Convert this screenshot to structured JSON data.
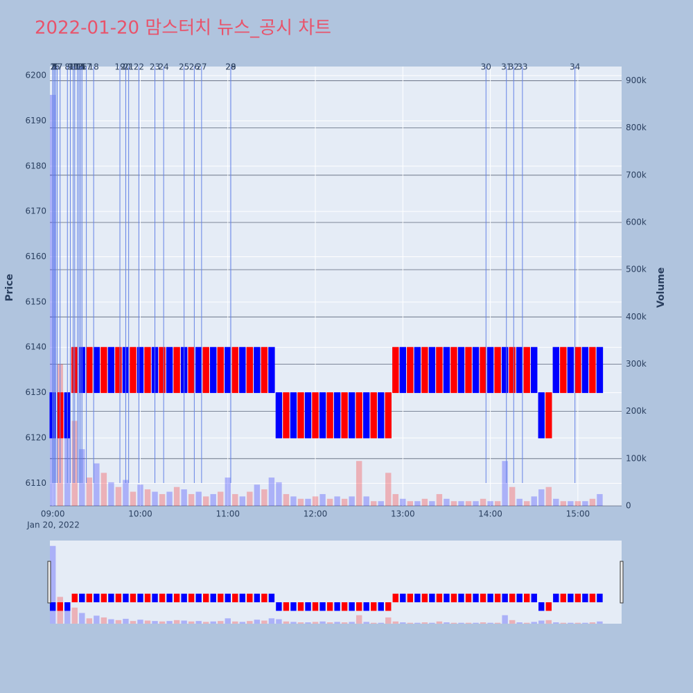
{
  "chart_data": {
    "type": "candlestick",
    "title": "2022-01-20 맘스터치 뉴스_공시 차트",
    "y_label": "Price",
    "y2_label": "Volume",
    "x": [
      "09:00",
      "09:05",
      "09:10",
      "09:15",
      "09:20",
      "09:25",
      "09:30",
      "09:35",
      "09:40",
      "09:45",
      "09:50",
      "09:55",
      "10:00",
      "10:05",
      "10:10",
      "10:15",
      "10:20",
      "10:25",
      "10:30",
      "10:35",
      "10:40",
      "10:45",
      "10:50",
      "10:55",
      "11:00",
      "11:05",
      "11:10",
      "11:15",
      "11:20",
      "11:25",
      "11:30",
      "11:35",
      "11:40",
      "11:45",
      "11:50",
      "11:55",
      "12:00",
      "12:05",
      "12:10",
      "12:15",
      "12:20",
      "12:25",
      "12:30",
      "12:35",
      "12:40",
      "12:45",
      "12:50",
      "12:55",
      "13:00",
      "13:05",
      "13:10",
      "13:15",
      "13:20",
      "13:25",
      "13:30",
      "13:35",
      "13:40",
      "13:45",
      "13:50",
      "13:55",
      "14:00",
      "14:05",
      "14:10",
      "14:15",
      "14:20",
      "14:25",
      "14:30",
      "14:35",
      "14:40",
      "14:45",
      "14:50",
      "14:55",
      "15:00",
      "15:05",
      "15:10",
      "15:15"
    ],
    "open": [
      6130,
      6120,
      6130,
      6130,
      6140,
      6130,
      6140,
      6130,
      6140,
      6130,
      6140,
      6130,
      6140,
      6130,
      6140,
      6130,
      6140,
      6130,
      6140,
      6130,
      6140,
      6130,
      6140,
      6130,
      6140,
      6130,
      6140,
      6130,
      6140,
      6130,
      6140,
      6130,
      6120,
      6130,
      6120,
      6130,
      6120,
      6130,
      6120,
      6130,
      6120,
      6130,
      6120,
      6130,
      6120,
      6130,
      6120,
      6130,
      6140,
      6130,
      6140,
      6130,
      6140,
      6130,
      6140,
      6130,
      6140,
      6130,
      6140,
      6130,
      6140,
      6130,
      6140,
      6130,
      6140,
      6130,
      6140,
      6130,
      6120,
      6140,
      6130,
      6140,
      6130,
      6140,
      6130,
      6140
    ],
    "close": [
      6120,
      6130,
      6120,
      6140,
      6130,
      6140,
      6130,
      6140,
      6130,
      6140,
      6130,
      6140,
      6130,
      6140,
      6130,
      6140,
      6130,
      6140,
      6130,
      6140,
      6130,
      6140,
      6130,
      6140,
      6130,
      6140,
      6130,
      6140,
      6130,
      6140,
      6130,
      6120,
      6130,
      6120,
      6130,
      6120,
      6130,
      6120,
      6130,
      6120,
      6130,
      6120,
      6130,
      6120,
      6130,
      6120,
      6130,
      6140,
      6130,
      6140,
      6130,
      6140,
      6130,
      6140,
      6130,
      6140,
      6130,
      6140,
      6130,
      6140,
      6130,
      6140,
      6130,
      6140,
      6130,
      6140,
      6130,
      6120,
      6130,
      6130,
      6140,
      6130,
      6140,
      6130,
      6140,
      6130
    ],
    "volume": [
      870000,
      300000,
      150000,
      180000,
      120000,
      60000,
      90000,
      70000,
      50000,
      40000,
      55000,
      30000,
      45000,
      35000,
      30000,
      25000,
      30000,
      40000,
      35000,
      25000,
      30000,
      20000,
      25000,
      30000,
      60000,
      25000,
      20000,
      30000,
      45000,
      35000,
      60000,
      50000,
      25000,
      20000,
      15000,
      15000,
      20000,
      25000,
      15000,
      20000,
      15000,
      20000,
      95000,
      20000,
      10000,
      10000,
      70000,
      25000,
      15000,
      10000,
      10000,
      15000,
      10000,
      25000,
      15000,
      10000,
      10000,
      10000,
      10000,
      15000,
      10000,
      10000,
      95000,
      40000,
      15000,
      10000,
      20000,
      35000,
      40000,
      15000,
      10000,
      10000,
      10000,
      10000,
      15000,
      25000
    ],
    "increasing_color": "#ff0000",
    "decreasing_color": "#0000ff",
    "news": {
      "x": [
        "09:00",
        "09:00",
        "09:01",
        "09:01",
        "09:02",
        "09:03",
        "09:05",
        "09:10",
        "09:12",
        "09:14",
        "09:15",
        "09:17",
        "09:17",
        "09:18",
        "09:19",
        "09:20",
        "09:23",
        "09:28",
        "09:46",
        "09:50",
        "09:52",
        "09:59",
        "10:10",
        "10:16",
        "10:30",
        "10:37",
        "10:42",
        "11:02",
        "11:02",
        "13:57",
        "14:11",
        "14:16",
        "14:22",
        "14:58"
      ],
      "labels": [
        "1",
        "2",
        "3",
        "4",
        "5",
        "6",
        "7",
        "8",
        "9",
        "10",
        "11",
        "12",
        "13",
        "14",
        "15",
        "16",
        "17",
        "18",
        "19",
        "20",
        "21",
        "22",
        "23",
        "24",
        "25",
        "26",
        "27",
        "28",
        "29",
        "30",
        "31",
        "32",
        "33",
        "34"
      ],
      "color": "#6482e6"
    },
    "xlim": [
      "08:58",
      "15:30"
    ],
    "xticks": [
      "09:00",
      "10:00",
      "11:00",
      "12:00",
      "13:00",
      "14:00",
      "15:00"
    ],
    "x_date_label": "Jan 20, 2022",
    "ylim": [
      6105,
      6202
    ],
    "yticks": [
      6110,
      6120,
      6130,
      6140,
      6150,
      6160,
      6170,
      6180,
      6190,
      6200
    ],
    "y2lim": [
      0,
      930000
    ],
    "y2ticks": [
      0,
      {
        "value": 100000,
        "label": "100k"
      },
      {
        "value": 200000,
        "label": "200k"
      },
      {
        "value": 300000,
        "label": "300k"
      },
      {
        "value": 400000,
        "label": "400k"
      },
      {
        "value": 500000,
        "label": "500k"
      },
      {
        "value": 600000,
        "label": "600k"
      },
      {
        "value": 700000,
        "label": "700k"
      },
      {
        "value": 800000,
        "label": "800k"
      },
      {
        "value": 900000,
        "label": "900k"
      }
    ],
    "grid": true,
    "range_slider": true
  }
}
